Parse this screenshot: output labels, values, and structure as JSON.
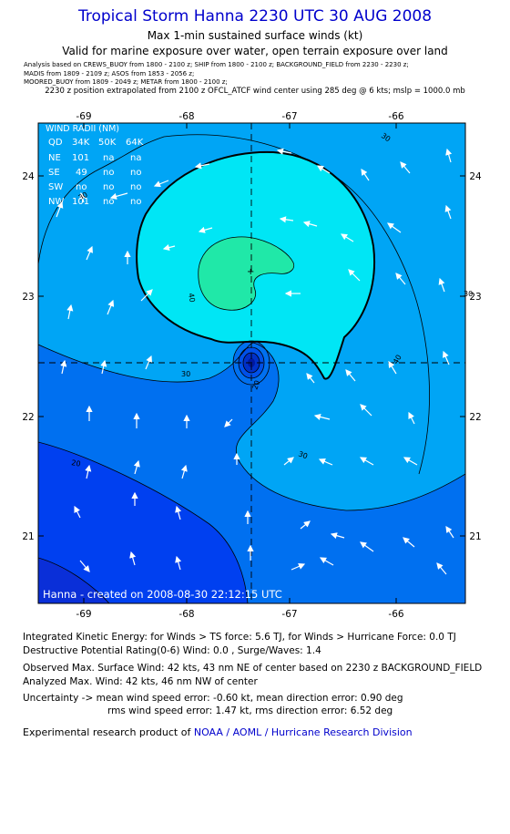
{
  "header": {
    "title": "Tropical Storm Hanna 2230 UTC 30 AUG 2008",
    "subtitle": "Max 1-min sustained surface winds (kt)",
    "valid_line": "Valid for marine exposure over water, open terrain exposure over land",
    "analysis_lines": [
      "Analysis based on  CREWS_BUOY from 1800 - 2100 z;   SHIP from 1800 - 2100 z;   BACKGROUND_FIELD from 2230 - 2230 z;",
      "MADIS from 1809 - 2109 z;   ASOS from 1853 - 2056 z;",
      "MOORED_BUOY from 1809 - 2049 z;   METAR from 1800 - 2100 z;"
    ],
    "position_line": "2230 z position extrapolated from 2100 z OFCL_ATCF wind center using 285 deg @ 6 kts; mslp = 1000.0 mb"
  },
  "map": {
    "lon_ticks": [
      "-69",
      "-68",
      "-67",
      "-66"
    ],
    "lat_ticks": [
      "24",
      "23",
      "22",
      "21"
    ],
    "wind_radii": {
      "title": "WIND RADII (NM)",
      "header": [
        "QD",
        "34K",
        "50K",
        "64K"
      ],
      "rows": [
        [
          "NE",
          "101",
          "na",
          "na"
        ],
        [
          "SE",
          "49",
          "no",
          "no"
        ],
        [
          "SW",
          "no",
          "no",
          "no"
        ],
        [
          "NW",
          "101",
          "no",
          "no"
        ]
      ]
    },
    "contour_labels": [
      "30",
      "40",
      "30",
      "40",
      "30",
      "20",
      "20",
      "30",
      "30"
    ],
    "center": {
      "lon": -67.3,
      "lat": 22.45
    },
    "footer": "Hanna - created on 2008-08-30 22:12:15 UTC",
    "colors": {
      "band_below_20": "#0040f0",
      "band_20_30": "#0070f0",
      "band_30_40": "#00a5f5",
      "band_40_50": "#00e6f5",
      "band_50_plus": "#20e8a8",
      "core": "#0030c8",
      "arrow": "#ffffff"
    }
  },
  "bottom": {
    "ike_line": "Integrated Kinetic Energy:  for Winds > TS force: 5.6 TJ,  for Winds > Hurricane Force: 0.0 TJ",
    "dpr_line": "Destructive Potential Rating(0-6)   Wind: 0.0 , Surge/Waves: 1.4",
    "observed_line": "Observed Max. Surface Wind: 42 kts, 43 nm NE of center based on 2230 z BACKGROUND_FIELD",
    "analyzed_line": "Analyzed Max. Wind: 42 kts, 46 nm NW of center",
    "uncertainty_line1": "Uncertainty -> mean wind speed error:  -0.60 kt,   mean direction error: 0.90 deg",
    "uncertainty_line2": "rms wind speed error: 1.47 kt,   rms direction error: 6.52 deg",
    "credit_prefix": "Experimental research product of",
    "credit_org": "NOAA / AOML / Hurricane Research Division"
  }
}
